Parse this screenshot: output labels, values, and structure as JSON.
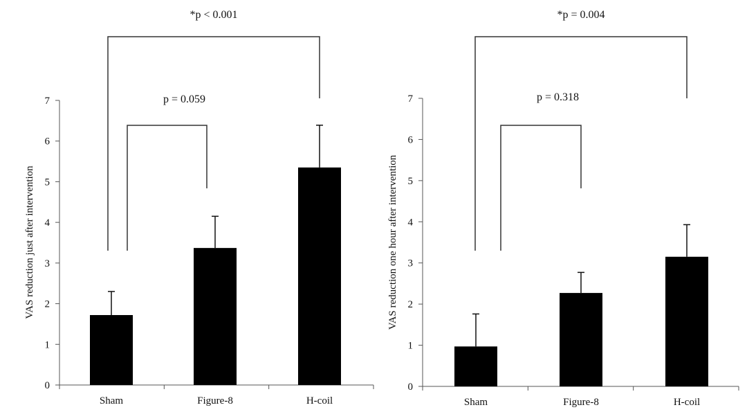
{
  "chart_data": [
    {
      "type": "bar",
      "categories": [
        "Sham",
        "Figure-8",
        "H-coil"
      ],
      "series": [
        {
          "values": [
            1.72,
            3.37,
            5.35
          ],
          "error": [
            0.58,
            0.78,
            1.04
          ]
        }
      ],
      "ylabel": "VAS reduction just after intervention",
      "xlabel": "",
      "ylim": [
        0,
        7
      ],
      "yticks": [
        "0",
        "1",
        "2",
        "3",
        "4",
        "5",
        "6",
        "7"
      ],
      "grid": false,
      "color": "#000000",
      "annotations": [
        {
          "text": "p = 0.059",
          "between": [
            "Sham",
            "Figure-8"
          ],
          "starred": false
        },
        {
          "star": "*",
          "text": "p < 0.001",
          "between": [
            "Sham",
            "H-coil"
          ],
          "starred": true
        }
      ]
    },
    {
      "type": "bar",
      "categories": [
        "Sham",
        "Figure-8",
        "H-coil"
      ],
      "series": [
        {
          "values": [
            0.97,
            2.27,
            3.15
          ],
          "error": [
            0.79,
            0.5,
            0.78
          ]
        }
      ],
      "ylabel": "VAS reduction one hour after intervention",
      "xlabel": "",
      "ylim": [
        0,
        7
      ],
      "yticks": [
        "0",
        "1",
        "2",
        "3",
        "4",
        "5",
        "6",
        "7"
      ],
      "grid": false,
      "color": "#000000",
      "annotations": [
        {
          "text": "p = 0.318",
          "between": [
            "Sham",
            "Figure-8"
          ],
          "starred": false
        },
        {
          "star": "*",
          "text": "p = 0.004",
          "between": [
            "Sham",
            "H-coil"
          ],
          "starred": true
        }
      ]
    }
  ]
}
